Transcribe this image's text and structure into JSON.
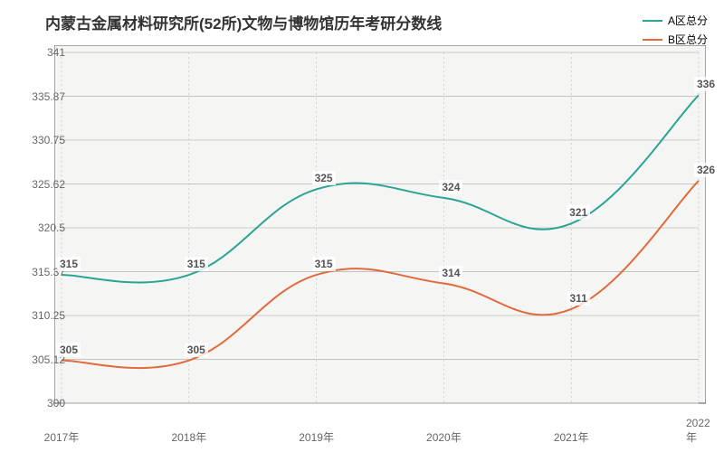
{
  "title": "内蒙古金属材料研究所(52所)文物与博物馆历年考研分数线",
  "title_fontsize": 17,
  "title_color": "#333333",
  "background_color": "#ffffff",
  "plot_background_color": "#f5f5f3",
  "grid_color": "#bbbbbb",
  "axis_color": "#555555",
  "categories": [
    "2017年",
    "2018年",
    "2019年",
    "2020年",
    "2021年",
    "2022年"
  ],
  "y_ticks": [
    "300",
    "305.12",
    "310.25",
    "315.37",
    "320.5",
    "325.62",
    "330.75",
    "335.87",
    "341"
  ],
  "ylim": [
    300,
    341
  ],
  "series": [
    {
      "name": "A区总分",
      "color": "#2aa593",
      "values": [
        315,
        315,
        325,
        324,
        321,
        336
      ],
      "line_width": 2,
      "smooth": true
    },
    {
      "name": "B区总分",
      "color": "#e06a3b",
      "values": [
        305,
        305,
        315,
        314,
        311,
        326
      ],
      "line_width": 2,
      "smooth": true
    }
  ],
  "label_fontsize": 12
}
